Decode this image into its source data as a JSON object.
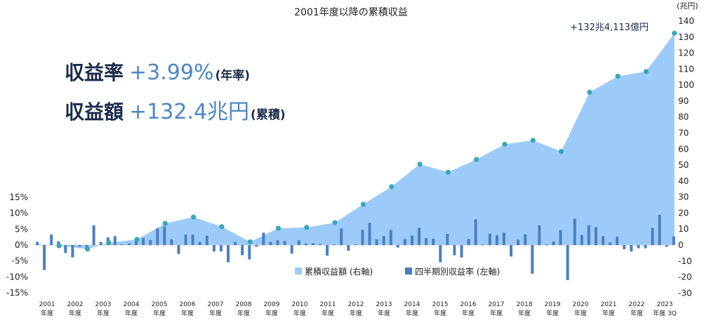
{
  "headline": {
    "rate_label": "収益率",
    "rate_value": "+3.99%",
    "rate_suffix": "(年率)",
    "amount_label": "収益額",
    "amount_value": "+132.4兆円",
    "amount_suffix": "(累積)"
  },
  "chart_data": {
    "type": "area+bar",
    "title": "2001年度以降の累積収益",
    "right_axis_unit": "(兆円)",
    "annotation": "+132兆4,113億円",
    "left_ylim": [
      -15,
      15
    ],
    "left_ticks": [
      "15%",
      "10%",
      "5%",
      "0%",
      "-5%",
      "-10%",
      "-15%"
    ],
    "right_ylim": [
      -30,
      140
    ],
    "right_ticks": [
      "140",
      "130",
      "120",
      "110",
      "100",
      "90",
      "80",
      "70",
      "60",
      "50",
      "40",
      "30",
      "20",
      "10",
      "0",
      "-10",
      "-20",
      "-30"
    ],
    "x_labels": [
      [
        "2001",
        "年度"
      ],
      [
        "2002",
        "年度"
      ],
      [
        "2003",
        "年度"
      ],
      [
        "2004",
        "年度"
      ],
      [
        "2005",
        "年度"
      ],
      [
        "2006",
        "年度"
      ],
      [
        "2007",
        "年度"
      ],
      [
        "2008",
        "年度"
      ],
      [
        "2009",
        "年度"
      ],
      [
        "2010",
        "年度"
      ],
      [
        "2011",
        "年度"
      ],
      [
        "2012",
        "年度"
      ],
      [
        "2013",
        "年度"
      ],
      [
        "2014",
        "年度"
      ],
      [
        "2015",
        "年度"
      ],
      [
        "2016",
        "年度"
      ],
      [
        "2017",
        "年度"
      ],
      [
        "2018",
        "年度"
      ],
      [
        "2019",
        "年度"
      ],
      [
        "2020",
        "年度"
      ],
      [
        "2021",
        "年度"
      ],
      [
        "2022",
        "年度"
      ],
      [
        "2023",
        "年度 3Q"
      ]
    ],
    "legend": [
      {
        "label": "累積収益額 (右軸)",
        "color": "#9ccbfa"
      },
      {
        "label": "四半期別収益率 (左軸)",
        "color": "#4a7fc0"
      }
    ],
    "series": [
      {
        "name": "累積収益額 (右軸)",
        "x_year": [
          2001.0,
          2001.75,
          2002.75,
          2003.5,
          2004.5,
          2005.5,
          2006.5,
          2007.5,
          2008.5,
          2009.5,
          2010.5,
          2011.5,
          2012.5,
          2013.5,
          2014.5,
          2015.5,
          2016.5,
          2017.5,
          2018.5,
          2019.5,
          2020.5,
          2021.5,
          2022.5,
          2023.5
        ],
        "values": [
          0.5,
          -0.5,
          -2.5,
          1.5,
          3.5,
          13.5,
          17.5,
          11.5,
          2.0,
          10.5,
          11.0,
          14.0,
          25.5,
          36.5,
          50.5,
          45.5,
          53.5,
          63.0,
          65.5,
          58.5,
          95.5,
          105.5,
          108.5,
          132.4
        ],
        "markers": [
          false,
          true,
          true,
          true,
          true,
          true,
          true,
          true,
          true,
          true,
          true,
          true,
          true,
          true,
          true,
          true,
          true,
          true,
          true,
          true,
          true,
          true,
          true,
          true
        ]
      },
      {
        "name": "四半期別収益率 (左軸)",
        "values": [
          1.0,
          -7.8,
          3.3,
          1.2,
          -2.5,
          -3.9,
          -0.5,
          -1.2,
          6.2,
          1.0,
          2.4,
          2.8,
          0.2,
          0.5,
          1.8,
          2.2,
          1.6,
          5.2,
          5.8,
          1.8,
          -2.8,
          3.3,
          3.3,
          1.0,
          2.9,
          -2.0,
          -2.0,
          -5.4,
          1.0,
          -3.2,
          -4.5,
          -0.5,
          3.9,
          1.0,
          1.5,
          1.3,
          -2.7,
          1.5,
          0.5,
          0.6,
          0.3,
          -3.3,
          0.2,
          5.2,
          -1.8,
          0.2,
          4.8,
          7.0,
          1.8,
          2.8,
          4.7,
          -0.8,
          1.9,
          3.0,
          5.4,
          2.2,
          2.0,
          -5.4,
          3.5,
          -3.2,
          -3.9,
          1.9,
          8.1,
          0.2,
          3.6,
          3.1,
          3.9,
          -3.6,
          1.7,
          3.4,
          -9.0,
          6.2,
          0.2,
          1.1,
          4.7,
          -11.0,
          8.3,
          3.2,
          6.2,
          5.6,
          2.8,
          0.8,
          2.7,
          -1.3,
          -2.0,
          -1.0,
          -1.0,
          5.4,
          9.5,
          -0.5,
          2.7
        ]
      }
    ]
  }
}
